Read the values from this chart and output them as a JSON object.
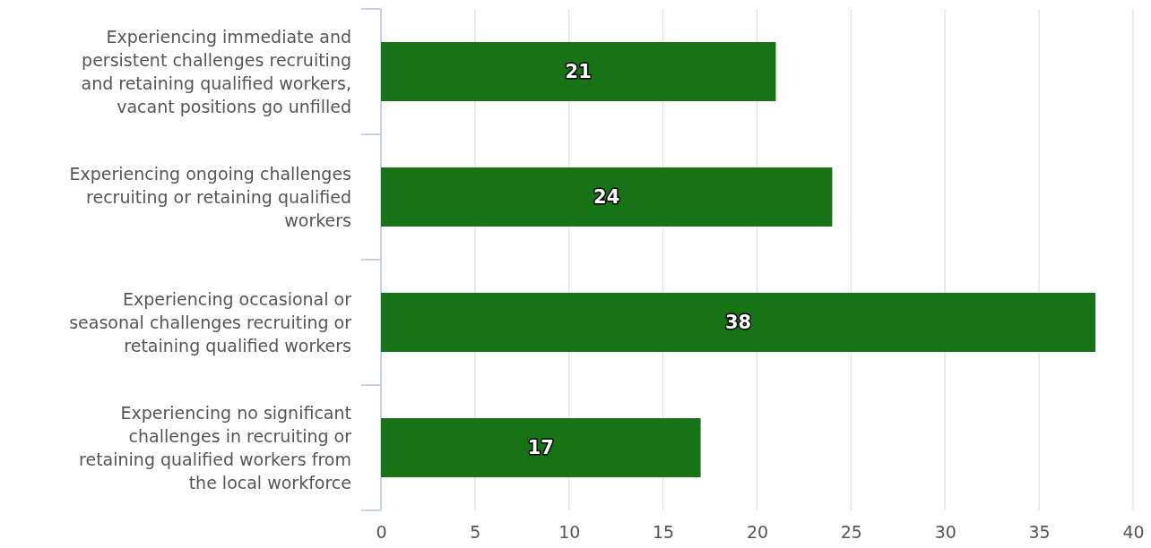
{
  "chart_data": {
    "type": "bar",
    "orientation": "horizontal",
    "categories": [
      "Experiencing immediate and persistent challenges recruiting and retaining qualified workers, vacant positions go unfilled",
      "Experiencing ongoing challenges recruiting or retaining qualified workers",
      "Experiencing occasional or seasonal challenges recruiting or retaining qualified workers",
      "Experiencing no significant challenges in recruiting or retaining qualified workers from the local workforce"
    ],
    "values": [
      21,
      24,
      38,
      17
    ],
    "color": "#167316",
    "data_labels": true,
    "grid": "x",
    "xlim": [
      0,
      40
    ],
    "xticks": [
      0,
      5,
      10,
      15,
      20,
      25,
      30,
      35,
      40
    ]
  }
}
